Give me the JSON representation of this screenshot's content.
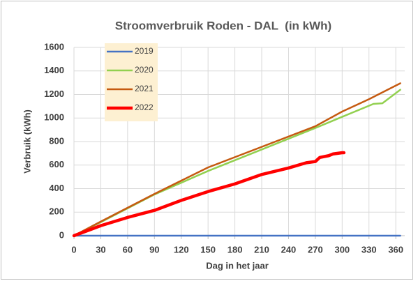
{
  "chart_data": {
    "type": "line",
    "title": "Stroomverbruik Roden - DAL  (in kWh)",
    "x_label": "Dag in het jaar",
    "y_label": "Verbruik (kWh)",
    "xlim": [
      0,
      370
    ],
    "xticks": [
      0,
      30,
      60,
      90,
      120,
      150,
      180,
      210,
      240,
      270,
      300,
      330,
      360
    ],
    "ylim": [
      0,
      1600
    ],
    "yticks": [
      0,
      200,
      400,
      600,
      800,
      1000,
      1200,
      1400,
      1600
    ],
    "grid": true,
    "legend": "upper left",
    "series": [
      {
        "name": "2019",
        "color": "#4472c4",
        "width": 2.5,
        "x": [
          0,
          365
        ],
        "values": [
          0,
          0
        ]
      },
      {
        "name": "2020",
        "color": "#92d050",
        "width": 2.5,
        "x": [
          0,
          30,
          90,
          150,
          270,
          300,
          335,
          345,
          365
        ],
        "values": [
          0,
          115,
          350,
          550,
          915,
          1010,
          1120,
          1125,
          1240
        ]
      },
      {
        "name": "2021",
        "color": "#c55a11",
        "width": 2.5,
        "x": [
          0,
          30,
          90,
          150,
          270,
          300,
          330,
          365
        ],
        "values": [
          0,
          120,
          355,
          580,
          930,
          1055,
          1160,
          1295
        ]
      },
      {
        "name": "2022",
        "color": "#ff0000",
        "width": 4.5,
        "x": [
          0,
          30,
          60,
          90,
          120,
          150,
          180,
          210,
          240,
          260,
          270,
          275,
          285,
          290,
          300,
          302
        ],
        "values": [
          0,
          85,
          155,
          215,
          300,
          375,
          440,
          520,
          575,
          620,
          630,
          665,
          680,
          695,
          705,
          705
        ]
      }
    ]
  }
}
